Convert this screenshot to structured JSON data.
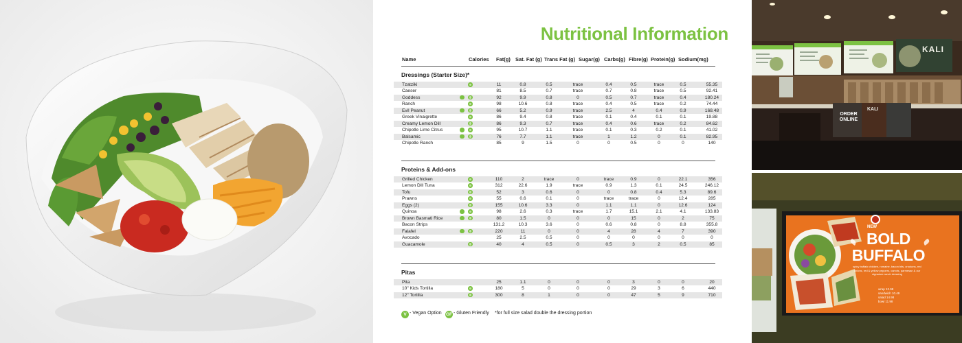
{
  "sheet": {
    "title": "Nutritional Information",
    "columns": {
      "name": "Name",
      "calories": "Calories",
      "fat": "Fat(g)",
      "sat_fat": "Sat. Fat (g)",
      "trans_fat": "Trans Fat (g)",
      "sugar": "Sugar(g)",
      "carbs": "Carbs(g)",
      "fibre": "Fibre(g)",
      "protein": "Protein(g)",
      "sodium": "Sodium(mg)"
    },
    "sections": [
      {
        "title": "Dressings (Starter Size)*",
        "rows": [
          {
            "name": "Tzatziki",
            "v": false,
            "gf": true,
            "cal": "11",
            "fat": "0.8",
            "sat": "0.5",
            "trans": "trace",
            "sugar": "0.4",
            "carb": "0.5",
            "fib": "trace",
            "pro": "0.5",
            "sod": "55.35"
          },
          {
            "name": "Caeser",
            "v": false,
            "gf": false,
            "cal": "81",
            "fat": "8.5",
            "sat": "0.7",
            "trans": "trace",
            "sugar": "0.7",
            "carb": "0.8",
            "fib": "trace",
            "pro": "0.5",
            "sod": "92.41"
          },
          {
            "name": "Goddess",
            "v": true,
            "gf": true,
            "cal": "92",
            "fat": "9.9",
            "sat": "0.8",
            "trans": "0",
            "sugar": "0.5",
            "carb": "0.7",
            "fib": "trace",
            "pro": "0.4",
            "sod": "180.24"
          },
          {
            "name": "Ranch",
            "v": false,
            "gf": true,
            "cal": "98",
            "fat": "10.6",
            "sat": "0.8",
            "trans": "trace",
            "sugar": "0.4",
            "carb": "0.5",
            "fib": "trace",
            "pro": "0.2",
            "sod": "74.44"
          },
          {
            "name": "Evil Peanut",
            "v": true,
            "gf": true,
            "cal": "66",
            "fat": "5.2",
            "sat": "0.9",
            "trans": "trace",
            "sugar": "2.5",
            "carb": "4",
            "fib": "0.4",
            "pro": "0.9",
            "sod": "168.48"
          },
          {
            "name": "Greek Vinaigrette",
            "v": false,
            "gf": true,
            "cal": "86",
            "fat": "9.4",
            "sat": "0.8",
            "trans": "trace",
            "sugar": "0.1",
            "carb": "0.4",
            "fib": "0.1",
            "pro": "0.1",
            "sod": "19.88"
          },
          {
            "name": "Creamy Lemon Dill",
            "v": false,
            "gf": true,
            "cal": "86",
            "fat": "9.3",
            "sat": "0.7",
            "trans": "trace",
            "sugar": "0.4",
            "carb": "0.6",
            "fib": "trace",
            "pro": "0.2",
            "sod": "84.62"
          },
          {
            "name": "Chipotle Lime Citrus",
            "v": true,
            "gf": true,
            "cal": "95",
            "fat": "10.7",
            "sat": "1.1",
            "trans": "trace",
            "sugar": "0.1",
            "carb": "0.3",
            "fib": "0.2",
            "pro": "0.1",
            "sod": "41.02"
          },
          {
            "name": "Balsamic",
            "v": true,
            "gf": true,
            "cal": "76",
            "fat": "7.7",
            "sat": "1.1",
            "trans": "trace",
            "sugar": "1",
            "carb": "1.2",
            "fib": "0",
            "pro": "0.1",
            "sod": "82.95"
          },
          {
            "name": "Chipotle Ranch",
            "v": false,
            "gf": false,
            "cal": "85",
            "fat": "9",
            "sat": "1.5",
            "trans": "0",
            "sugar": "0",
            "carb": "0.5",
            "fib": "0",
            "pro": "0",
            "sod": "140"
          }
        ]
      },
      {
        "title": "Proteins & Add-ons",
        "rows": [
          {
            "name": "Grilled Chicken",
            "v": false,
            "gf": true,
            "cal": "110",
            "fat": "2",
            "sat": "trace",
            "trans": "0",
            "sugar": "trace",
            "carb": "0.9",
            "fib": "0",
            "pro": "22.1",
            "sod": "356"
          },
          {
            "name": "Lemon Dill Tuna",
            "v": false,
            "gf": true,
            "cal": "312",
            "fat": "22.6",
            "sat": "1.9",
            "trans": "trace",
            "sugar": "0.9",
            "carb": "1.3",
            "fib": "0.1",
            "pro": "24.5",
            "sod": "246.12"
          },
          {
            "name": "Tofu",
            "v": false,
            "gf": true,
            "cal": "52",
            "fat": "3",
            "sat": "0.6",
            "trans": "0",
            "sugar": "0",
            "carb": "0.8",
            "fib": "0.4",
            "pro": "5.3",
            "sod": "89.6"
          },
          {
            "name": "Prawns",
            "v": false,
            "gf": true,
            "cal": "55",
            "fat": "0.6",
            "sat": "0.1",
            "trans": "0",
            "sugar": "trace",
            "carb": "trace",
            "fib": "0",
            "pro": "12.4",
            "sod": "285"
          },
          {
            "name": "Eggs (2)",
            "v": false,
            "gf": true,
            "cal": "155",
            "fat": "10.6",
            "sat": "3.3",
            "trans": "0",
            "sugar": "1.1",
            "carb": "1.1",
            "fib": "0",
            "pro": "12.6",
            "sod": "124"
          },
          {
            "name": "Quinoa",
            "v": true,
            "gf": true,
            "cal": "98",
            "fat": "2.6",
            "sat": "0.3",
            "trans": "trace",
            "sugar": "1.7",
            "carb": "15.1",
            "fib": "2.1",
            "pro": "4.1",
            "sod": "133.83"
          },
          {
            "name": "Brown Basmati Rice",
            "v": true,
            "gf": true,
            "cal": "80",
            "fat": "1.5",
            "sat": "0",
            "trans": "0",
            "sugar": "0",
            "carb": "15",
            "fib": "0",
            "pro": "2",
            "sod": "75"
          },
          {
            "name": "Bacon Strips",
            "v": false,
            "gf": false,
            "cal": "131.2",
            "fat": "10.3",
            "sat": "3.6",
            "trans": "0",
            "sugar": "0.6",
            "carb": "0.8",
            "fib": "0",
            "pro": "8.8",
            "sod": "355.8"
          },
          {
            "name": "Falafel",
            "v": true,
            "gf": true,
            "cal": "220",
            "fat": "11",
            "sat": "0",
            "trans": "0",
            "sugar": "4",
            "carb": "28",
            "fib": "4",
            "pro": "7",
            "sod": "390"
          },
          {
            "name": "Avocado",
            "v": false,
            "gf": false,
            "cal": "25",
            "fat": "2.5",
            "sat": "0.5",
            "trans": "0",
            "sugar": "0",
            "carb": "0",
            "fib": "0",
            "pro": "0",
            "sod": "0"
          },
          {
            "name": "Guacamole",
            "v": false,
            "gf": true,
            "cal": "40",
            "fat": "4",
            "sat": "0.5",
            "trans": "0",
            "sugar": "0.5",
            "carb": "3",
            "fib": "2",
            "pro": "0.5",
            "sod": "85"
          }
        ]
      },
      {
        "title": "Pitas",
        "rows": [
          {
            "name": "Pita",
            "v": false,
            "gf": false,
            "cal": "25",
            "fat": "1.1",
            "sat": "0",
            "trans": "0",
            "sugar": "0",
            "carb": "3",
            "fib": "0",
            "pro": "0",
            "sod": "20"
          },
          {
            "name": "10\" Kids Tortilla",
            "v": false,
            "gf": true,
            "cal": "180",
            "fat": "5",
            "sat": "0",
            "trans": "0",
            "sugar": "0",
            "carb": "29",
            "fib": "3",
            "pro": "6",
            "sod": "440"
          },
          {
            "name": "12\" Tortilla",
            "v": false,
            "gf": true,
            "cal": "300",
            "fat": "8",
            "sat": "1",
            "trans": "0",
            "sugar": "0",
            "carb": "47",
            "fib": "5",
            "pro": "9",
            "sod": "710"
          }
        ]
      }
    ],
    "legend": {
      "vegan_badge": "V",
      "vegan_label": "- Vegan Option",
      "gf_badge": "GF",
      "gf_label": "- Gluten Friendly",
      "note": "*for full size salad double the dressing portion"
    }
  },
  "photos": {
    "store_sign_large": "KALI",
    "store_sign_small": "KALI",
    "order_sign": {
      "top": "ORDER",
      "bottom": "ONLINE"
    },
    "promo": {
      "new": "NEW",
      "title_line1": "BOLD",
      "title_line2": "BUFFALO",
      "description": "spicy buffalo chicken, romaine, bacon bits, croutons, red onions, red & yellow peppers, carrots, parmesan & our signature ranch dressing",
      "prices": [
        "wrap 12.98",
        "sandwich 10.49",
        "salad 14.98",
        "bowl 11.98"
      ]
    }
  }
}
